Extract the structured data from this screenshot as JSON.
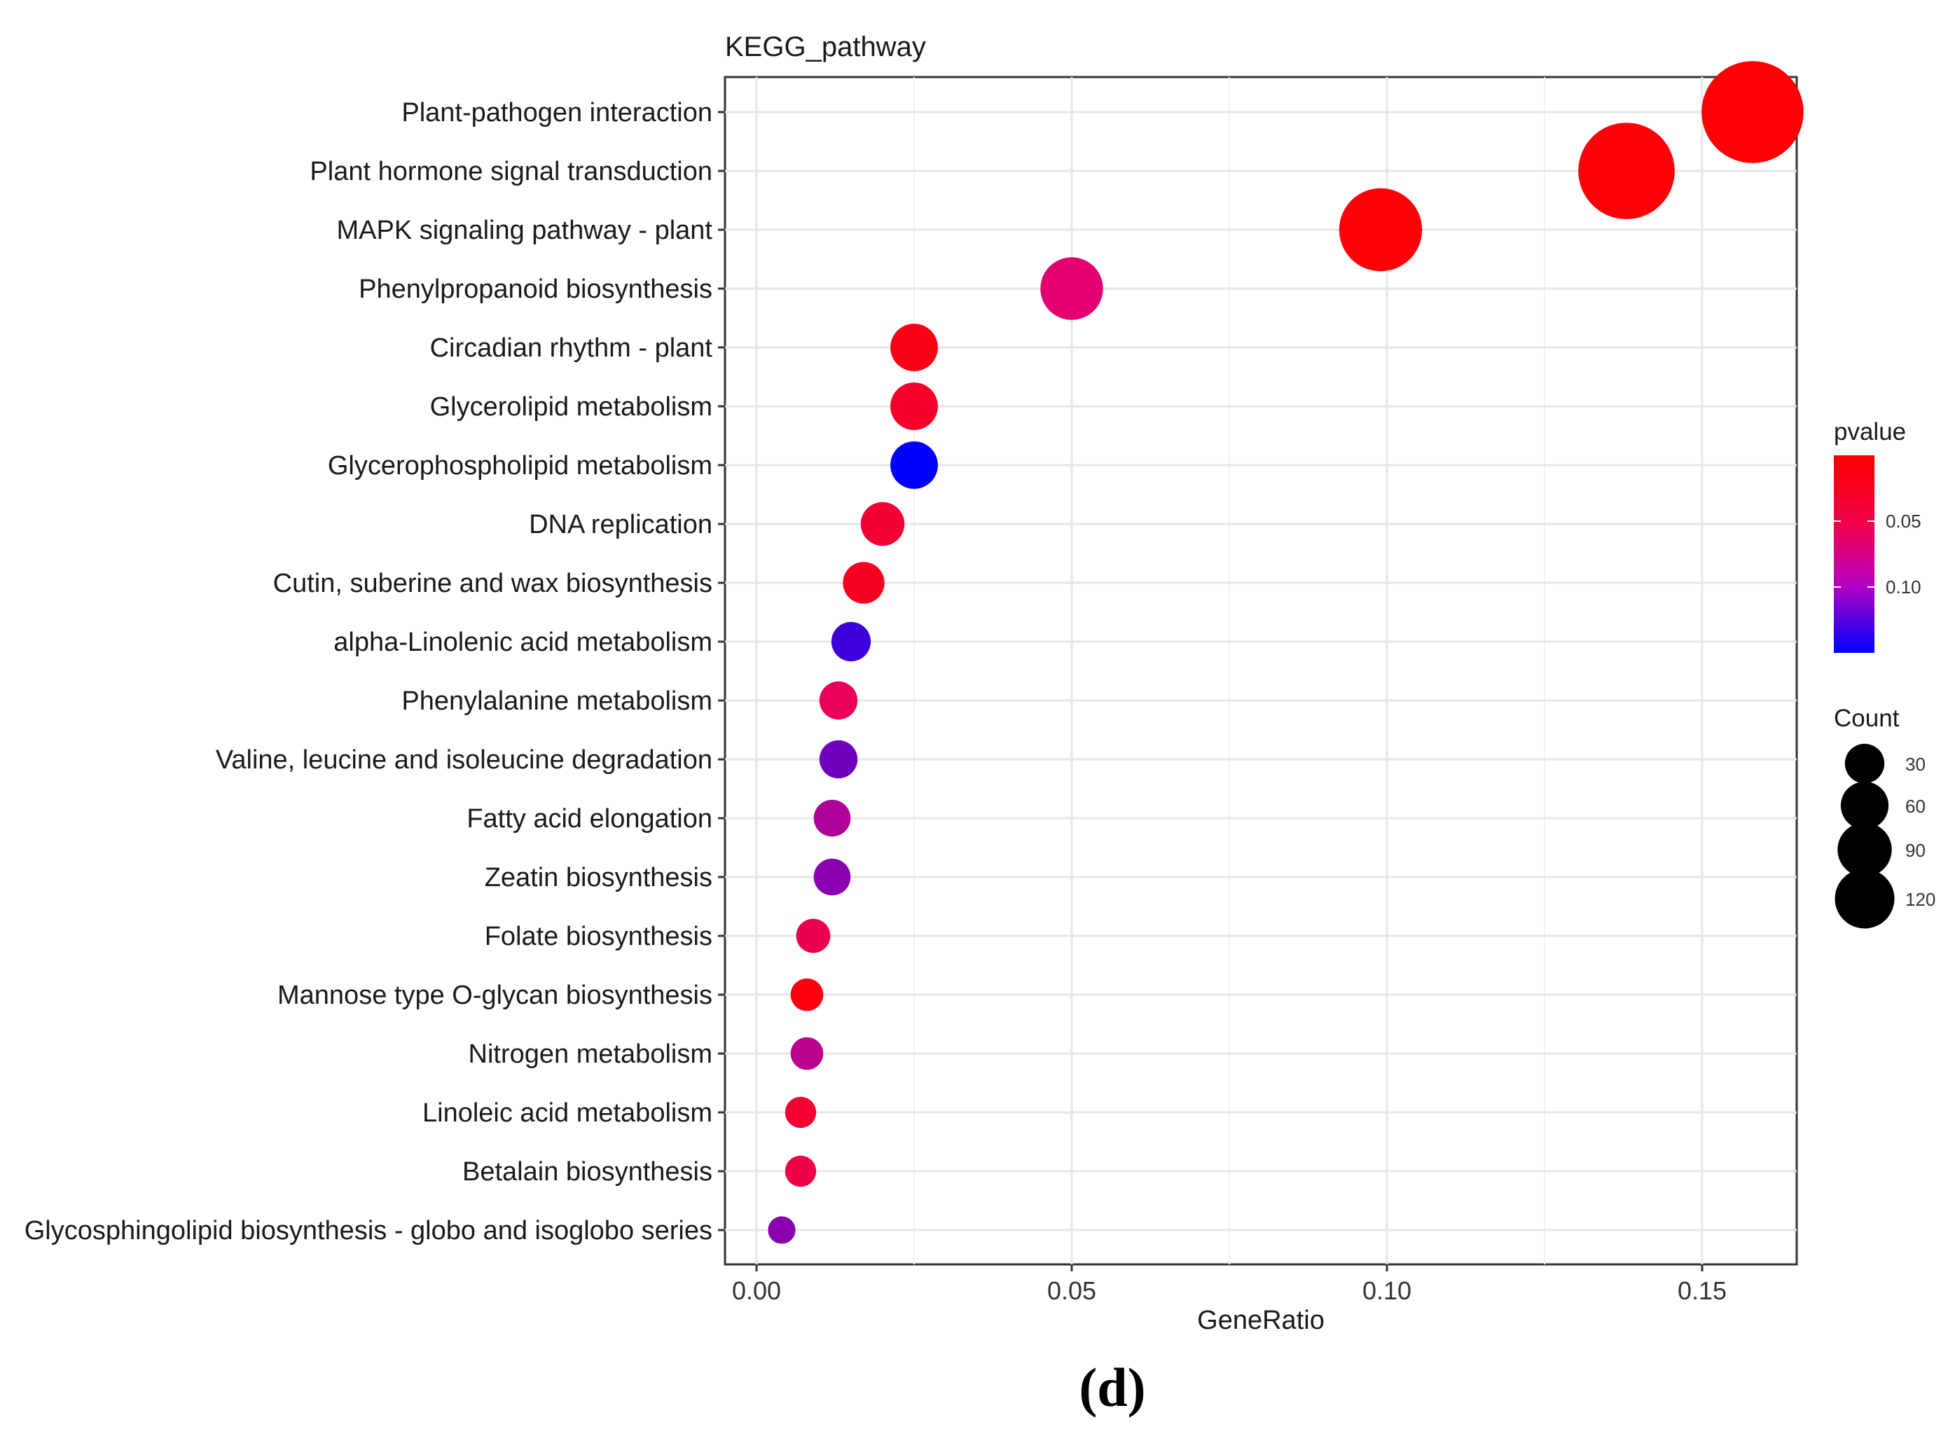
{
  "chart_data": {
    "type": "scatter",
    "title": "KEGG_pathway",
    "xlabel": "GeneRatio",
    "ylabel": "",
    "xlim": [
      -0.005,
      0.165
    ],
    "xticks": [
      0.0,
      0.05,
      0.1,
      0.15
    ],
    "xtick_labels": [
      "0.00",
      "0.05",
      "0.10",
      "0.15"
    ],
    "grid": true,
    "categories": [
      "Plant-pathogen interaction",
      "Plant hormone signal transduction",
      "MAPK signaling pathway - plant",
      "Phenylpropanoid biosynthesis",
      "Circadian rhythm - plant",
      "Glycerolipid metabolism",
      "Glycerophospholipid metabolism",
      "DNA replication",
      "Cutin, suberine and wax biosynthesis",
      "alpha-Linolenic acid metabolism",
      "Phenylalanine metabolism",
      "Valine, leucine and isoleucine degradation",
      "Fatty acid elongation",
      "Zeatin biosynthesis",
      "Folate biosynthesis",
      "Mannose type O-glycan biosynthesis",
      "Nitrogen metabolism",
      "Linoleic acid metabolism",
      "Betalain biosynthesis",
      "Glycosphingolipid biosynthesis - globo and isoglobo series"
    ],
    "gene_ratio": [
      0.158,
      0.138,
      0.099,
      0.05,
      0.025,
      0.025,
      0.025,
      0.02,
      0.017,
      0.015,
      0.013,
      0.013,
      0.012,
      0.012,
      0.009,
      0.008,
      0.008,
      0.007,
      0.007,
      0.004
    ],
    "count": [
      125,
      110,
      78,
      40,
      20,
      20,
      20,
      16,
      14,
      12,
      11,
      11,
      10,
      10,
      8,
      7,
      7,
      6,
      6,
      4
    ],
    "pvalue": [
      0.002,
      0.004,
      0.004,
      0.055,
      0.01,
      0.02,
      0.15,
      0.025,
      0.015,
      0.125,
      0.045,
      0.105,
      0.08,
      0.095,
      0.04,
      0.008,
      0.075,
      0.025,
      0.035,
      0.095
    ],
    "color_scale": {
      "title": "pvalue",
      "low_color": "#ff0000",
      "mid_color": "#e0007a",
      "high_color": "#0000ff",
      "range": [
        0.0,
        0.15
      ],
      "ticks": [
        0.05,
        0.1
      ],
      "tick_labels": [
        "0.05",
        "0.10"
      ]
    },
    "size_legend": {
      "title": "Count",
      "values": [
        30,
        60,
        90,
        120
      ],
      "labels": [
        "30",
        "60",
        "90",
        "120"
      ]
    },
    "legend_position": "right"
  },
  "panel_label": "(d)"
}
